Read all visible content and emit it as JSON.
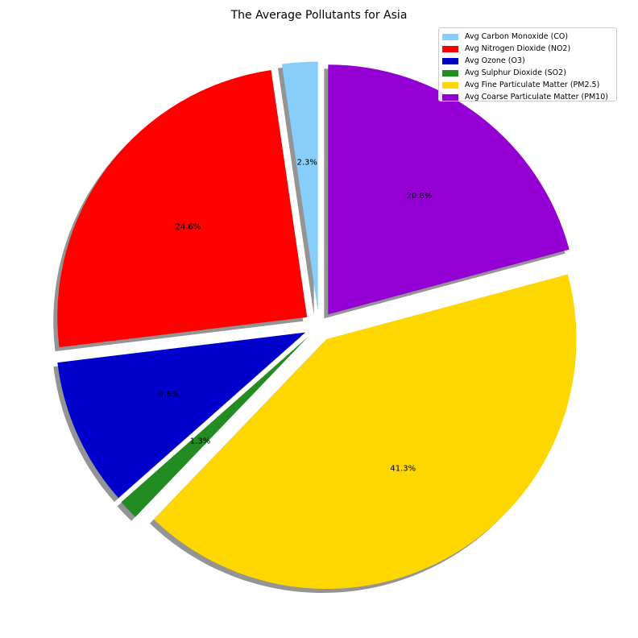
{
  "chart_data": {
    "type": "pie",
    "title": "The Average Pollutants for Asia",
    "legend_position": "top-right",
    "slices": [
      {
        "label": "Avg Carbon Monoxide (CO)",
        "value": 2.3,
        "pct_label": "2.3%",
        "color": "#87CEFA"
      },
      {
        "label": "Avg Nitrogen Dioxide (NO2)",
        "value": 24.6,
        "pct_label": "24.6%",
        "color": "#FF0000"
      },
      {
        "label": "Avg Ozone (O3)",
        "value": 9.6,
        "pct_label": "9.6%",
        "color": "#0000CD"
      },
      {
        "label": "Avg Sulphur Dioxide (SO2)",
        "value": 1.3,
        "pct_label": "1.3%",
        "color": "#228B22"
      },
      {
        "label": "Avg Fine Particulate Matter (PM2.5)",
        "value": 41.3,
        "pct_label": "41.3%",
        "color": "#FFD700"
      },
      {
        "label": "Avg Coarse Particulate Matter (PM10)",
        "value": 20.8,
        "pct_label": "20.8%",
        "color": "#9400D3"
      }
    ]
  }
}
